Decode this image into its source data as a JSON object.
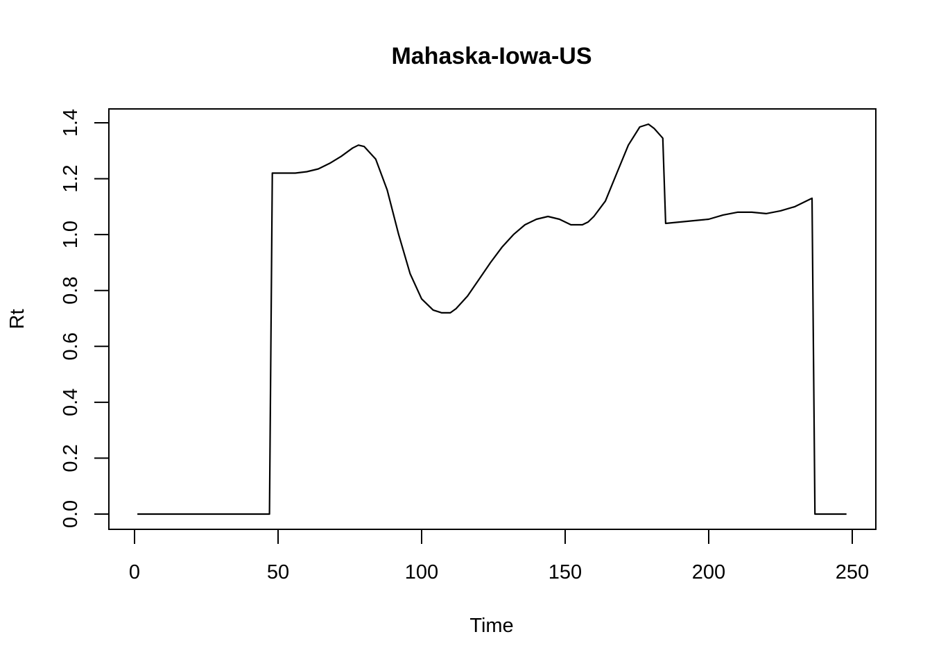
{
  "chart_data": {
    "type": "line",
    "title": "Mahaska-Iowa-US",
    "xlabel": "Time",
    "ylabel": "Rt",
    "xlim": [
      1,
      248
    ],
    "ylim": [
      0,
      1.4
    ],
    "x_ticks": [
      0,
      50,
      100,
      150,
      200,
      250
    ],
    "x_tick_labels": [
      "0",
      "50",
      "100",
      "150",
      "200",
      "250"
    ],
    "y_ticks": [
      0,
      0.2,
      0.4,
      0.6,
      0.8,
      1.0,
      1.2,
      1.4
    ],
    "y_tick_labels": [
      "0.0",
      "0.2",
      "0.4",
      "0.6",
      "0.8",
      "1.0",
      "1.2",
      "1.4"
    ],
    "grid": false,
    "legend": "none",
    "line_color": "#000000",
    "series": [
      {
        "x": [
          1,
          47,
          48,
          52,
          56,
          60,
          64,
          68,
          72,
          76,
          78,
          80,
          84,
          88,
          92,
          96,
          100,
          104,
          107,
          110,
          112,
          116,
          120,
          124,
          128,
          132,
          136,
          140,
          144,
          148,
          152,
          156,
          158,
          160,
          164,
          168,
          172,
          176,
          179,
          181,
          184,
          185,
          190,
          195,
          200,
          205,
          210,
          215,
          220,
          225,
          230,
          235,
          236,
          237,
          248
        ],
        "y": [
          0,
          0,
          1.22,
          1.22,
          1.22,
          1.225,
          1.235,
          1.255,
          1.28,
          1.31,
          1.32,
          1.315,
          1.27,
          1.16,
          1.0,
          0.86,
          0.77,
          0.73,
          0.72,
          0.72,
          0.735,
          0.78,
          0.84,
          0.9,
          0.955,
          1.0,
          1.035,
          1.055,
          1.065,
          1.055,
          1.035,
          1.035,
          1.045,
          1.065,
          1.12,
          1.22,
          1.32,
          1.385,
          1.395,
          1.38,
          1.345,
          1.04,
          1.045,
          1.05,
          1.055,
          1.07,
          1.08,
          1.08,
          1.075,
          1.085,
          1.1,
          1.125,
          1.13,
          0,
          0
        ]
      }
    ]
  }
}
